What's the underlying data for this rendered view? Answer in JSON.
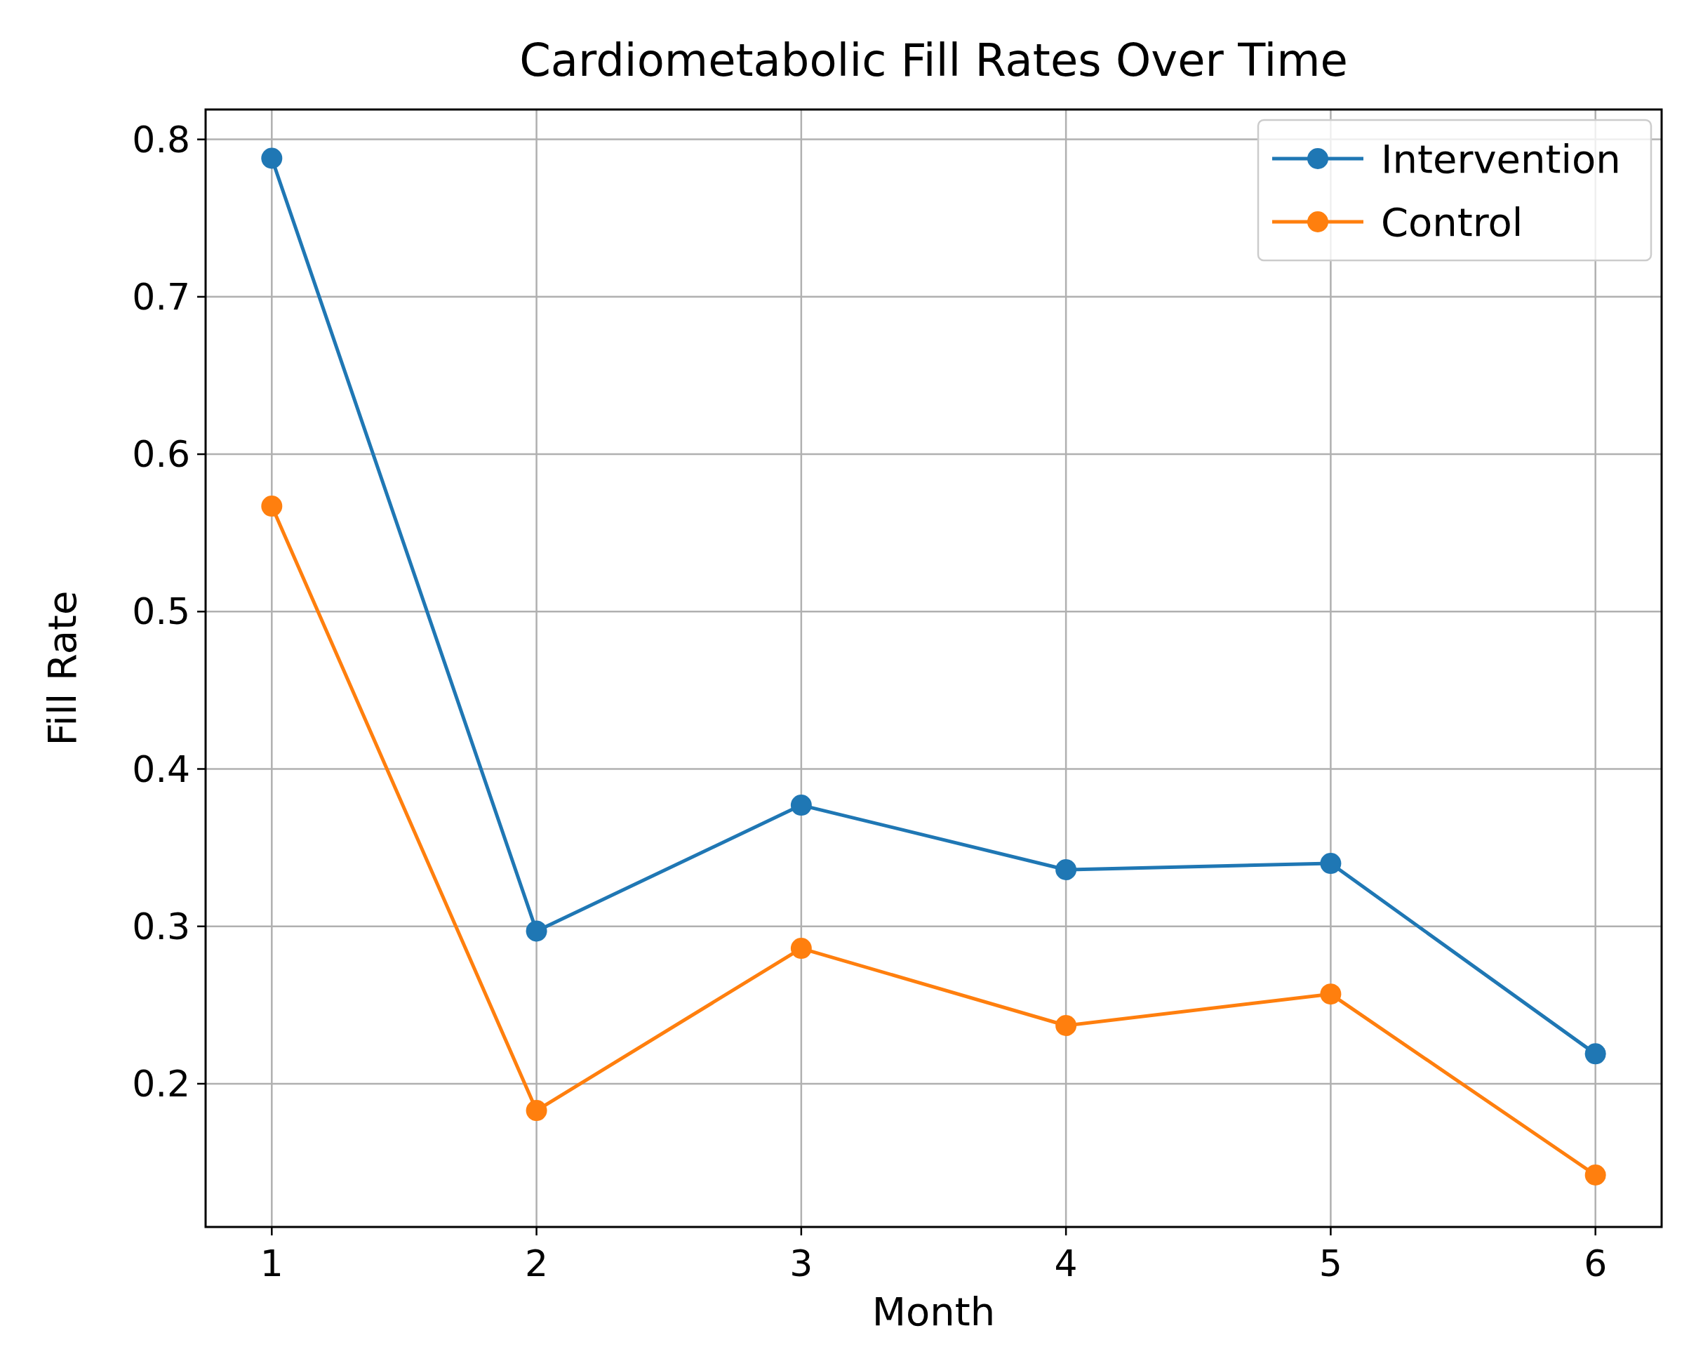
{
  "chart_data": {
    "type": "line",
    "title": "Cardiometabolic Fill Rates Over Time",
    "xlabel": "Month",
    "ylabel": "Fill Rate",
    "x": [
      1,
      2,
      3,
      4,
      5,
      6
    ],
    "series": [
      {
        "name": "Intervention",
        "color": "#1f77b4",
        "values": [
          0.788,
          0.297,
          0.377,
          0.336,
          0.34,
          0.219
        ]
      },
      {
        "name": "Control",
        "color": "#ff7f0e",
        "values": [
          0.567,
          0.183,
          0.286,
          0.237,
          0.257,
          0.142
        ]
      }
    ],
    "xlim": [
      0.75,
      6.25
    ],
    "xticks": [
      1,
      2,
      3,
      4,
      5,
      6
    ],
    "ylim": [
      0.109,
      0.819
    ],
    "yticks": [
      0.2,
      0.3,
      0.4,
      0.5,
      0.6,
      0.7,
      0.8
    ],
    "grid": true,
    "legend": "top right",
    "marker": "circle",
    "line_style": "solid"
  }
}
